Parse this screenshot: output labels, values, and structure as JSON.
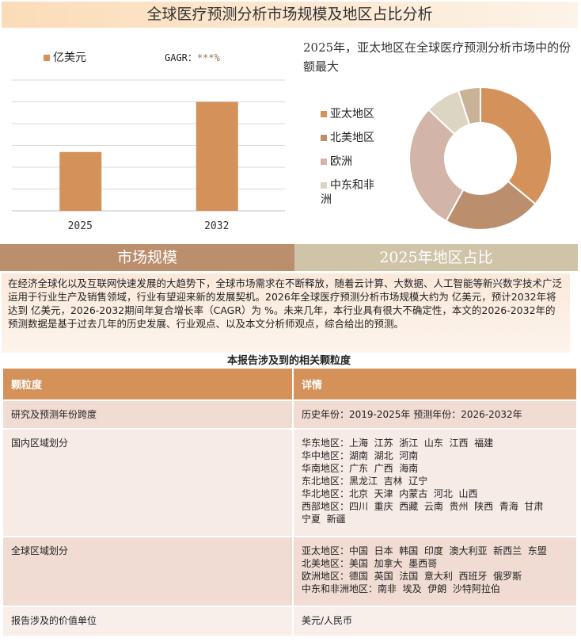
{
  "title": "全球医疗预测分析市场规模及地区占比分析",
  "bar_legend": "亿美元",
  "gagr_label": "GAGR：",
  "gagr_value": "***%",
  "pie_title": "2025年，亚太地区在全球医疗预测分析市场中的份额最大",
  "tabs": [
    "市场规模",
    "2025年地区占比"
  ],
  "paragraph": "在经济全球化以及互联网快速发展的大趋势下，全球市场需求在不断释放，随着云计算、大数据、人工智能等新兴数字技术广泛运用于行业生产及销售领域，行业有望迎来新的发展契机。2026年全球医疗预测分析市场规模大约为 亿美元，预计2032年将达到 亿美元，2026-2032期间年复合增长率（CAGR）为 %。未来几年，本行业具有很大不确定性，本文的2026-2032年的预测数据是基于过去几年的历史发展、行业观点、以及本文分析师观点，综合给出的预测。",
  "table_title": "本报告涉及到的相关颗粒度",
  "table": {
    "headers": [
      "颗粒度",
      "详情"
    ],
    "rows": [
      {
        "label": "研究及预测年份跨度",
        "details": [
          "历史年份：2019-2025年 预测年份：2026-2032年"
        ]
      },
      {
        "label": "国内区域划分",
        "details": [
          "华东地区：上海  江苏  浙江  山东  江西  福建",
          "华中地区：湖南  湖北  河南",
          "华南地区：广东  广西  海南",
          "东北地区：黑龙江  吉林  辽宁",
          "华北地区：北京  天津  内蒙古  河北  山西",
          "西部地区：四川  重庆  西藏  云南  贵州  陕西  青海  甘肃",
          "宁夏  新疆"
        ]
      },
      {
        "label": "全球区域划分",
        "details": [
          "亚太地区：中国  日本  韩国  印度  澳大利亚  新西兰  东盟",
          "北美地区：美国  加拿大  墨西哥",
          "欧洲地区：德国  英国  法国  意大利  西班牙  俄罗斯",
          "中东和非洲地区：南非  埃及  伊朗  沙特阿拉伯"
        ]
      },
      {
        "label": "报告涉及的价值单位",
        "details": [
          "美元/人民币"
        ]
      }
    ]
  },
  "chart_data": [
    {
      "type": "bar",
      "categories": [
        "2025",
        "2032"
      ],
      "values": [
        2.7,
        5.0
      ],
      "series_name": "亿美元",
      "ylim": [
        0,
        6
      ],
      "grid": true,
      "color": "#d4915a"
    },
    {
      "type": "pie",
      "donut": true,
      "categories": [
        "亚太地区",
        "北美地区",
        "欧洲",
        "中东和非洲",
        ""
      ],
      "values": [
        36,
        22,
        29,
        8,
        5
      ],
      "colors": [
        "#d4915a",
        "#bb8f6e",
        "#d2b5a8",
        "#ddd5c4",
        "#c9b398"
      ],
      "legend": "left"
    }
  ]
}
